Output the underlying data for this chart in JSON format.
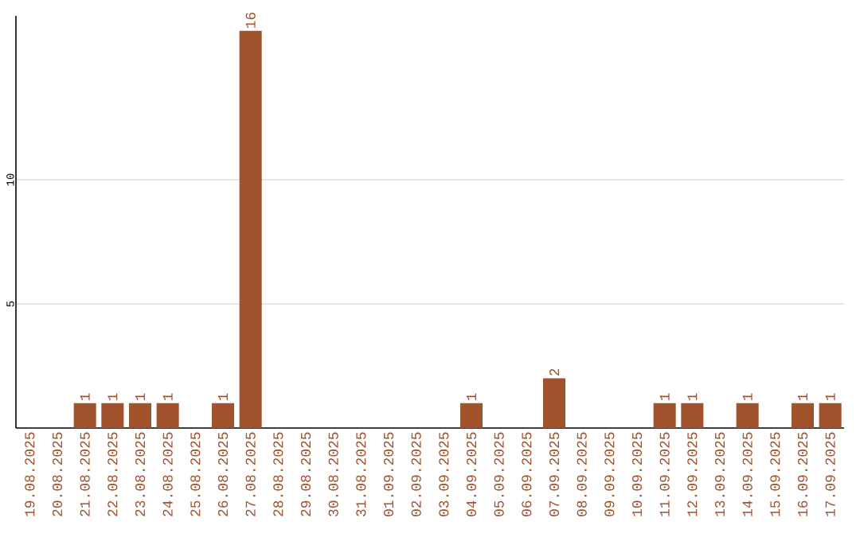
{
  "chart_data": {
    "type": "bar",
    "categories": [
      "19.08.2025",
      "20.08.2025",
      "21.08.2025",
      "22.08.2025",
      "23.08.2025",
      "24.08.2025",
      "25.08.2025",
      "26.08.2025",
      "27.08.2025",
      "28.08.2025",
      "29.08.2025",
      "30.08.2025",
      "31.08.2025",
      "01.09.2025",
      "02.09.2025",
      "03.09.2025",
      "04.09.2025",
      "05.09.2025",
      "06.09.2025",
      "07.09.2025",
      "08.09.2025",
      "09.09.2025",
      "10.09.2025",
      "11.09.2025",
      "12.09.2025",
      "13.09.2025",
      "14.09.2025",
      "15.09.2025",
      "16.09.2025",
      "17.09.2025"
    ],
    "values": [
      0,
      0,
      1,
      1,
      1,
      1,
      0,
      1,
      16,
      0,
      0,
      0,
      0,
      0,
      0,
      0,
      1,
      0,
      0,
      2,
      0,
      0,
      0,
      1,
      1,
      0,
      1,
      0,
      1,
      1
    ],
    "value_labels": [
      null,
      null,
      "1",
      "1",
      "1",
      "1",
      null,
      "1",
      "16",
      null,
      null,
      null,
      null,
      null,
      null,
      null,
      "1",
      null,
      null,
      "2",
      null,
      null,
      null,
      "1",
      "1",
      null,
      "1",
      null,
      "1",
      "1"
    ],
    "color": "#a0522d",
    "ylim": [
      0,
      16.6
    ],
    "yticks": [
      5,
      10
    ],
    "grid": "y"
  }
}
